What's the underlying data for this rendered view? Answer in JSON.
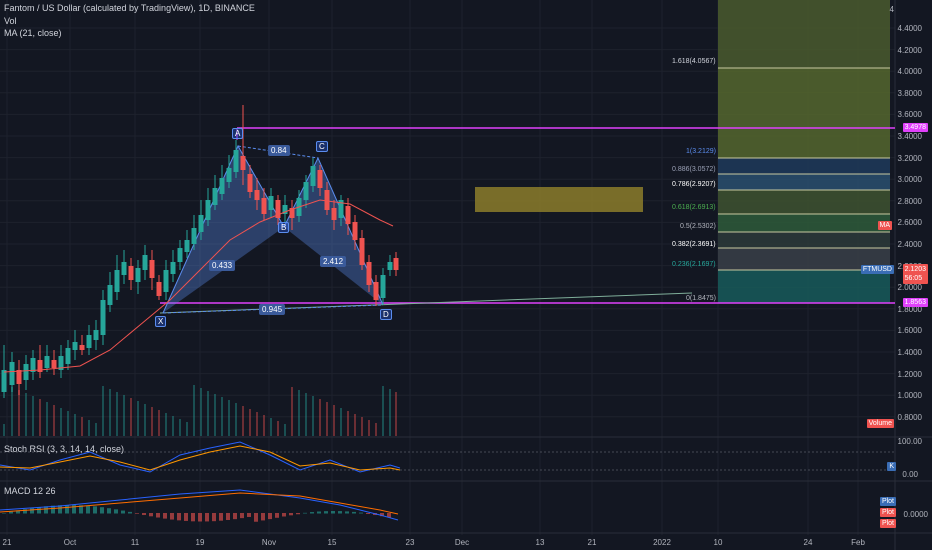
{
  "header": {
    "symbol_line": "Fantom / US Dollar (calculated by TradingView), 1D, BINANCE",
    "vol_label": "Vol",
    "ma_label": "MA (21, close)"
  },
  "price_axis": [
    "4.4000",
    "4.2000",
    "4.0000",
    "3.8000",
    "3.6000",
    "3.4000",
    "3.2000",
    "3.0000",
    "2.8000",
    "2.6000",
    "2.4000",
    "2.2000",
    "2.0000",
    "1.8000",
    "1.6000",
    "1.4000",
    "1.2000",
    "1.0000",
    "0.8000"
  ],
  "date_axis": [
    "21",
    "Oct",
    "11",
    "19",
    "Nov",
    "15",
    "23",
    "Dec",
    "13",
    "21",
    "2022",
    "10",
    "24",
    "Feb"
  ],
  "harmonic": {
    "points": [
      "X",
      "A",
      "B",
      "C",
      "D"
    ],
    "ratios": [
      "0.84",
      "0.433",
      "2.412",
      "0.945"
    ]
  },
  "fib_levels": [
    {
      "label": "1.618(4.0567)",
      "color": "#d1d4dc"
    },
    {
      "label": "1(3.2129)",
      "color": "#5b8def"
    },
    {
      "label": "0.886(3.0572)",
      "color": "#9aa0b5"
    },
    {
      "label": "0.786(2.9207)",
      "color": "#ffffff"
    },
    {
      "label": "0.618(2.6913)",
      "color": "#4caf50"
    },
    {
      "label": "0.5(2.5302)",
      "color": "#b2b5be"
    },
    {
      "label": "0.382(2.3691)",
      "color": "#ffffff"
    },
    {
      "label": "0.236(2.1697)",
      "color": "#26a69a"
    },
    {
      "label": "0(1.8475)",
      "color": "#b2b5be"
    }
  ],
  "price_tags": {
    "top": "3.4978",
    "ma": "MA",
    "current_symbol": "FTMUSD",
    "current_price": "2.1203",
    "countdown": "56:05",
    "bottom": "1.8563",
    "volume": "Volume",
    "top_axis": "4"
  },
  "stoch": {
    "label": "Stoch RSI (3, 3, 14, 14, close)",
    "axis": [
      "100.00",
      "0.00"
    ],
    "tag": "K"
  },
  "macd": {
    "label": "MACD 12 26",
    "axis": [
      "0.0000"
    ],
    "tags": [
      "Plot",
      "Plot",
      "Plot"
    ]
  },
  "colors": {
    "bg": "#131722",
    "up": "#26a69a",
    "down": "#ef5350",
    "magenta": "#e040fb",
    "pattern_fill": "#5b8def"
  }
}
